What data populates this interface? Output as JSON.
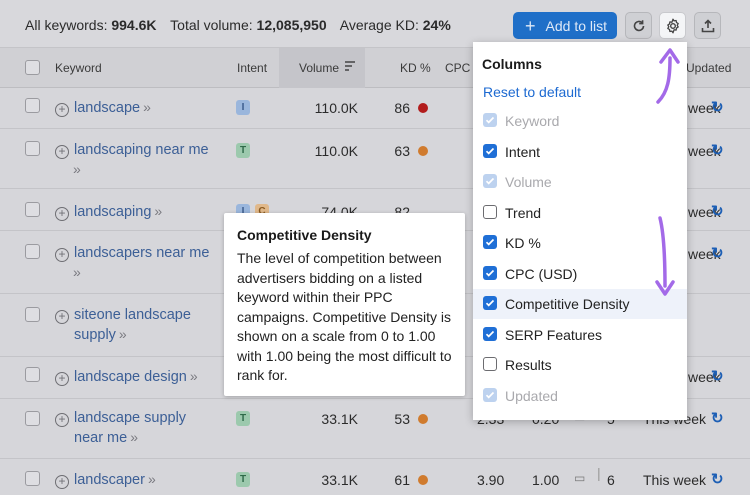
{
  "stats": {
    "keywords_label": "All keywords:",
    "keywords_value": "994.6K",
    "volume_label": "Total volume:",
    "volume_value": "12,085,950",
    "kd_label": "Average KD:",
    "kd_value": "24%"
  },
  "toolbar": {
    "add_label": "Add to list",
    "add_icon": "plus-icon",
    "refresh_icon": "refresh-icon",
    "settings_icon": "gear-icon",
    "export_icon": "export-icon"
  },
  "table": {
    "headers": {
      "keyword": "Keyword",
      "intent": "Intent",
      "volume": "Volume",
      "kd": "KD %",
      "cpc": "CPC",
      "updated": "Updated"
    },
    "rows": [
      {
        "line1": "landscape",
        "line2": "",
        "intents": [
          "I"
        ],
        "volume": "110.0K",
        "kd": "86",
        "kd_color": "red",
        "cpc": "",
        "density": "",
        "serp": "",
        "updated": "week"
      },
      {
        "line1": "landscaping near me",
        "line2": "",
        "intents": [
          "T"
        ],
        "volume": "110.0K",
        "kd": "63",
        "kd_color": "orange",
        "cpc": "",
        "density": "",
        "serp": "",
        "updated": "week"
      },
      {
        "line1": "landscaping",
        "line2": "",
        "intents": [
          "I",
          "C"
        ],
        "volume": "74.0K",
        "kd": "82",
        "kd_color": "red",
        "cpc": "",
        "density": "",
        "serp": "",
        "updated": "week"
      },
      {
        "line1": "landscapers near me",
        "line2": "",
        "intents": [],
        "volume": "",
        "kd": "",
        "kd_color": "",
        "cpc": "",
        "density": "",
        "serp": "",
        "updated": "week"
      },
      {
        "line1": "siteone landscape",
        "line2": "supply",
        "intents": [],
        "volume": "",
        "kd": "",
        "kd_color": "",
        "cpc": "",
        "density": "",
        "serp": "",
        "updated": ""
      },
      {
        "line1": "landscape design",
        "line2": "",
        "intents": [],
        "volume": "",
        "kd": "",
        "kd_color": "",
        "cpc": "",
        "density": "",
        "serp": "",
        "updated": "week"
      },
      {
        "line1": "landscape supply",
        "line2": "near me",
        "intents": [
          "T"
        ],
        "volume": "33.1K",
        "kd": "53",
        "kd_color": "orange",
        "cpc": "2.33",
        "density": "0.20",
        "serp": "5",
        "updated": "This week"
      },
      {
        "line1": "landscaper",
        "line2": "",
        "intents": [
          "T"
        ],
        "volume": "33.1K",
        "kd": "61",
        "kd_color": "orange",
        "cpc": "3.90",
        "density": "1.00",
        "serp": "6",
        "updated": "This week"
      }
    ]
  },
  "tooltip": {
    "title": "Competitive Density",
    "body": "The level of competition between advertisers bidding on a listed keyword within their PPC campaigns. Competitive Density is shown on a scale from 0 to 1.00 with 1.00 being the most difficult to rank for."
  },
  "columns_panel": {
    "title": "Columns",
    "reset": "Reset to default",
    "options": [
      {
        "label": "Keyword",
        "state": "disabled"
      },
      {
        "label": "Intent",
        "state": "checked"
      },
      {
        "label": "Volume",
        "state": "disabled"
      },
      {
        "label": "Trend",
        "state": "unchecked"
      },
      {
        "label": "KD %",
        "state": "checked"
      },
      {
        "label": "CPC (USD)",
        "state": "checked"
      },
      {
        "label": "Competitive Density",
        "state": "checked"
      },
      {
        "label": "SERP Features",
        "state": "checked"
      },
      {
        "label": "Results",
        "state": "unchecked"
      },
      {
        "label": "Updated",
        "state": "disabled"
      }
    ]
  },
  "colors": {
    "accent": "#1f6fd6",
    "annotation_arrow": "#a36ae8",
    "kd_red": "#b21c1c",
    "kd_orange": "#d07b2e"
  }
}
